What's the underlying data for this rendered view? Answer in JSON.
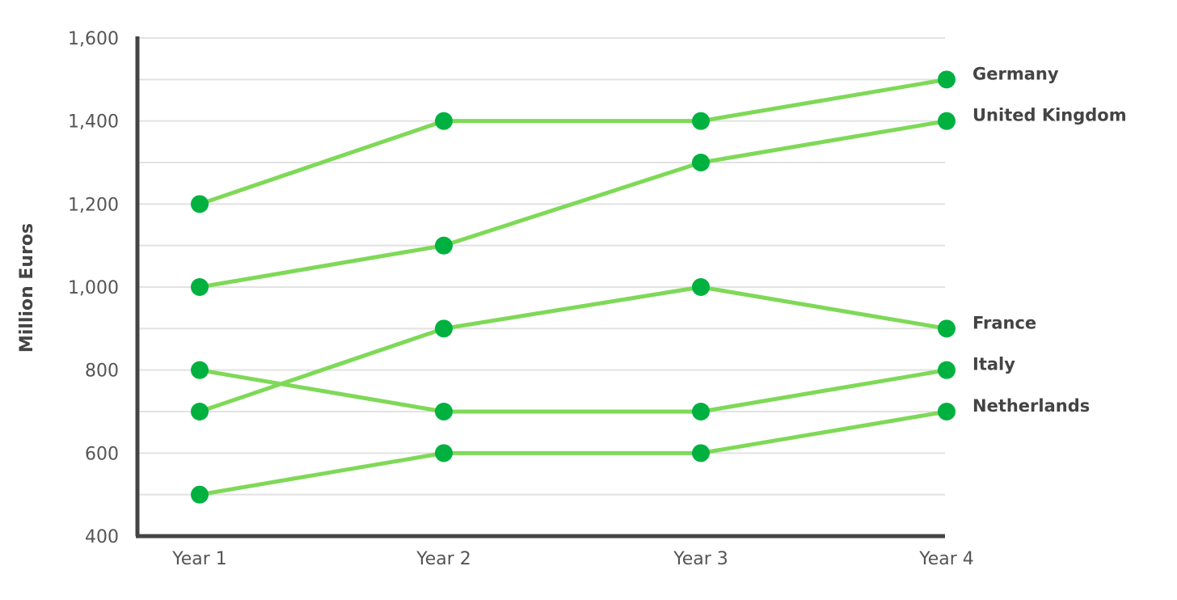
{
  "chart_data": {
    "type": "line",
    "title": "",
    "xlabel": "",
    "ylabel": "Million Euros",
    "categories": [
      "Year 1",
      "Year 2",
      "Year 3",
      "Year 4"
    ],
    "ylim": [
      400,
      1600
    ],
    "yticks": [
      400,
      600,
      800,
      1000,
      1200,
      1400,
      1600
    ],
    "ytick_labels": [
      "400",
      "600",
      "800",
      "1,000",
      "1,200",
      "1,400",
      "1,600"
    ],
    "grid": true,
    "legend": "direct labels at right end of lines",
    "colors": {
      "line": "#7ed957",
      "marker": "#00b140",
      "axis": "#444444",
      "grid": "#e2e2e2"
    },
    "series": [
      {
        "name": "Germany",
        "values": [
          1200,
          1400,
          1400,
          1500
        ]
      },
      {
        "name": "United Kingdom",
        "values": [
          1000,
          1100,
          1300,
          1400
        ]
      },
      {
        "name": "France",
        "values": [
          700,
          900,
          1000,
          900
        ]
      },
      {
        "name": "Italy",
        "values": [
          800,
          700,
          700,
          800
        ]
      },
      {
        "name": "Netherlands",
        "values": [
          500,
          600,
          600,
          700
        ]
      }
    ]
  }
}
